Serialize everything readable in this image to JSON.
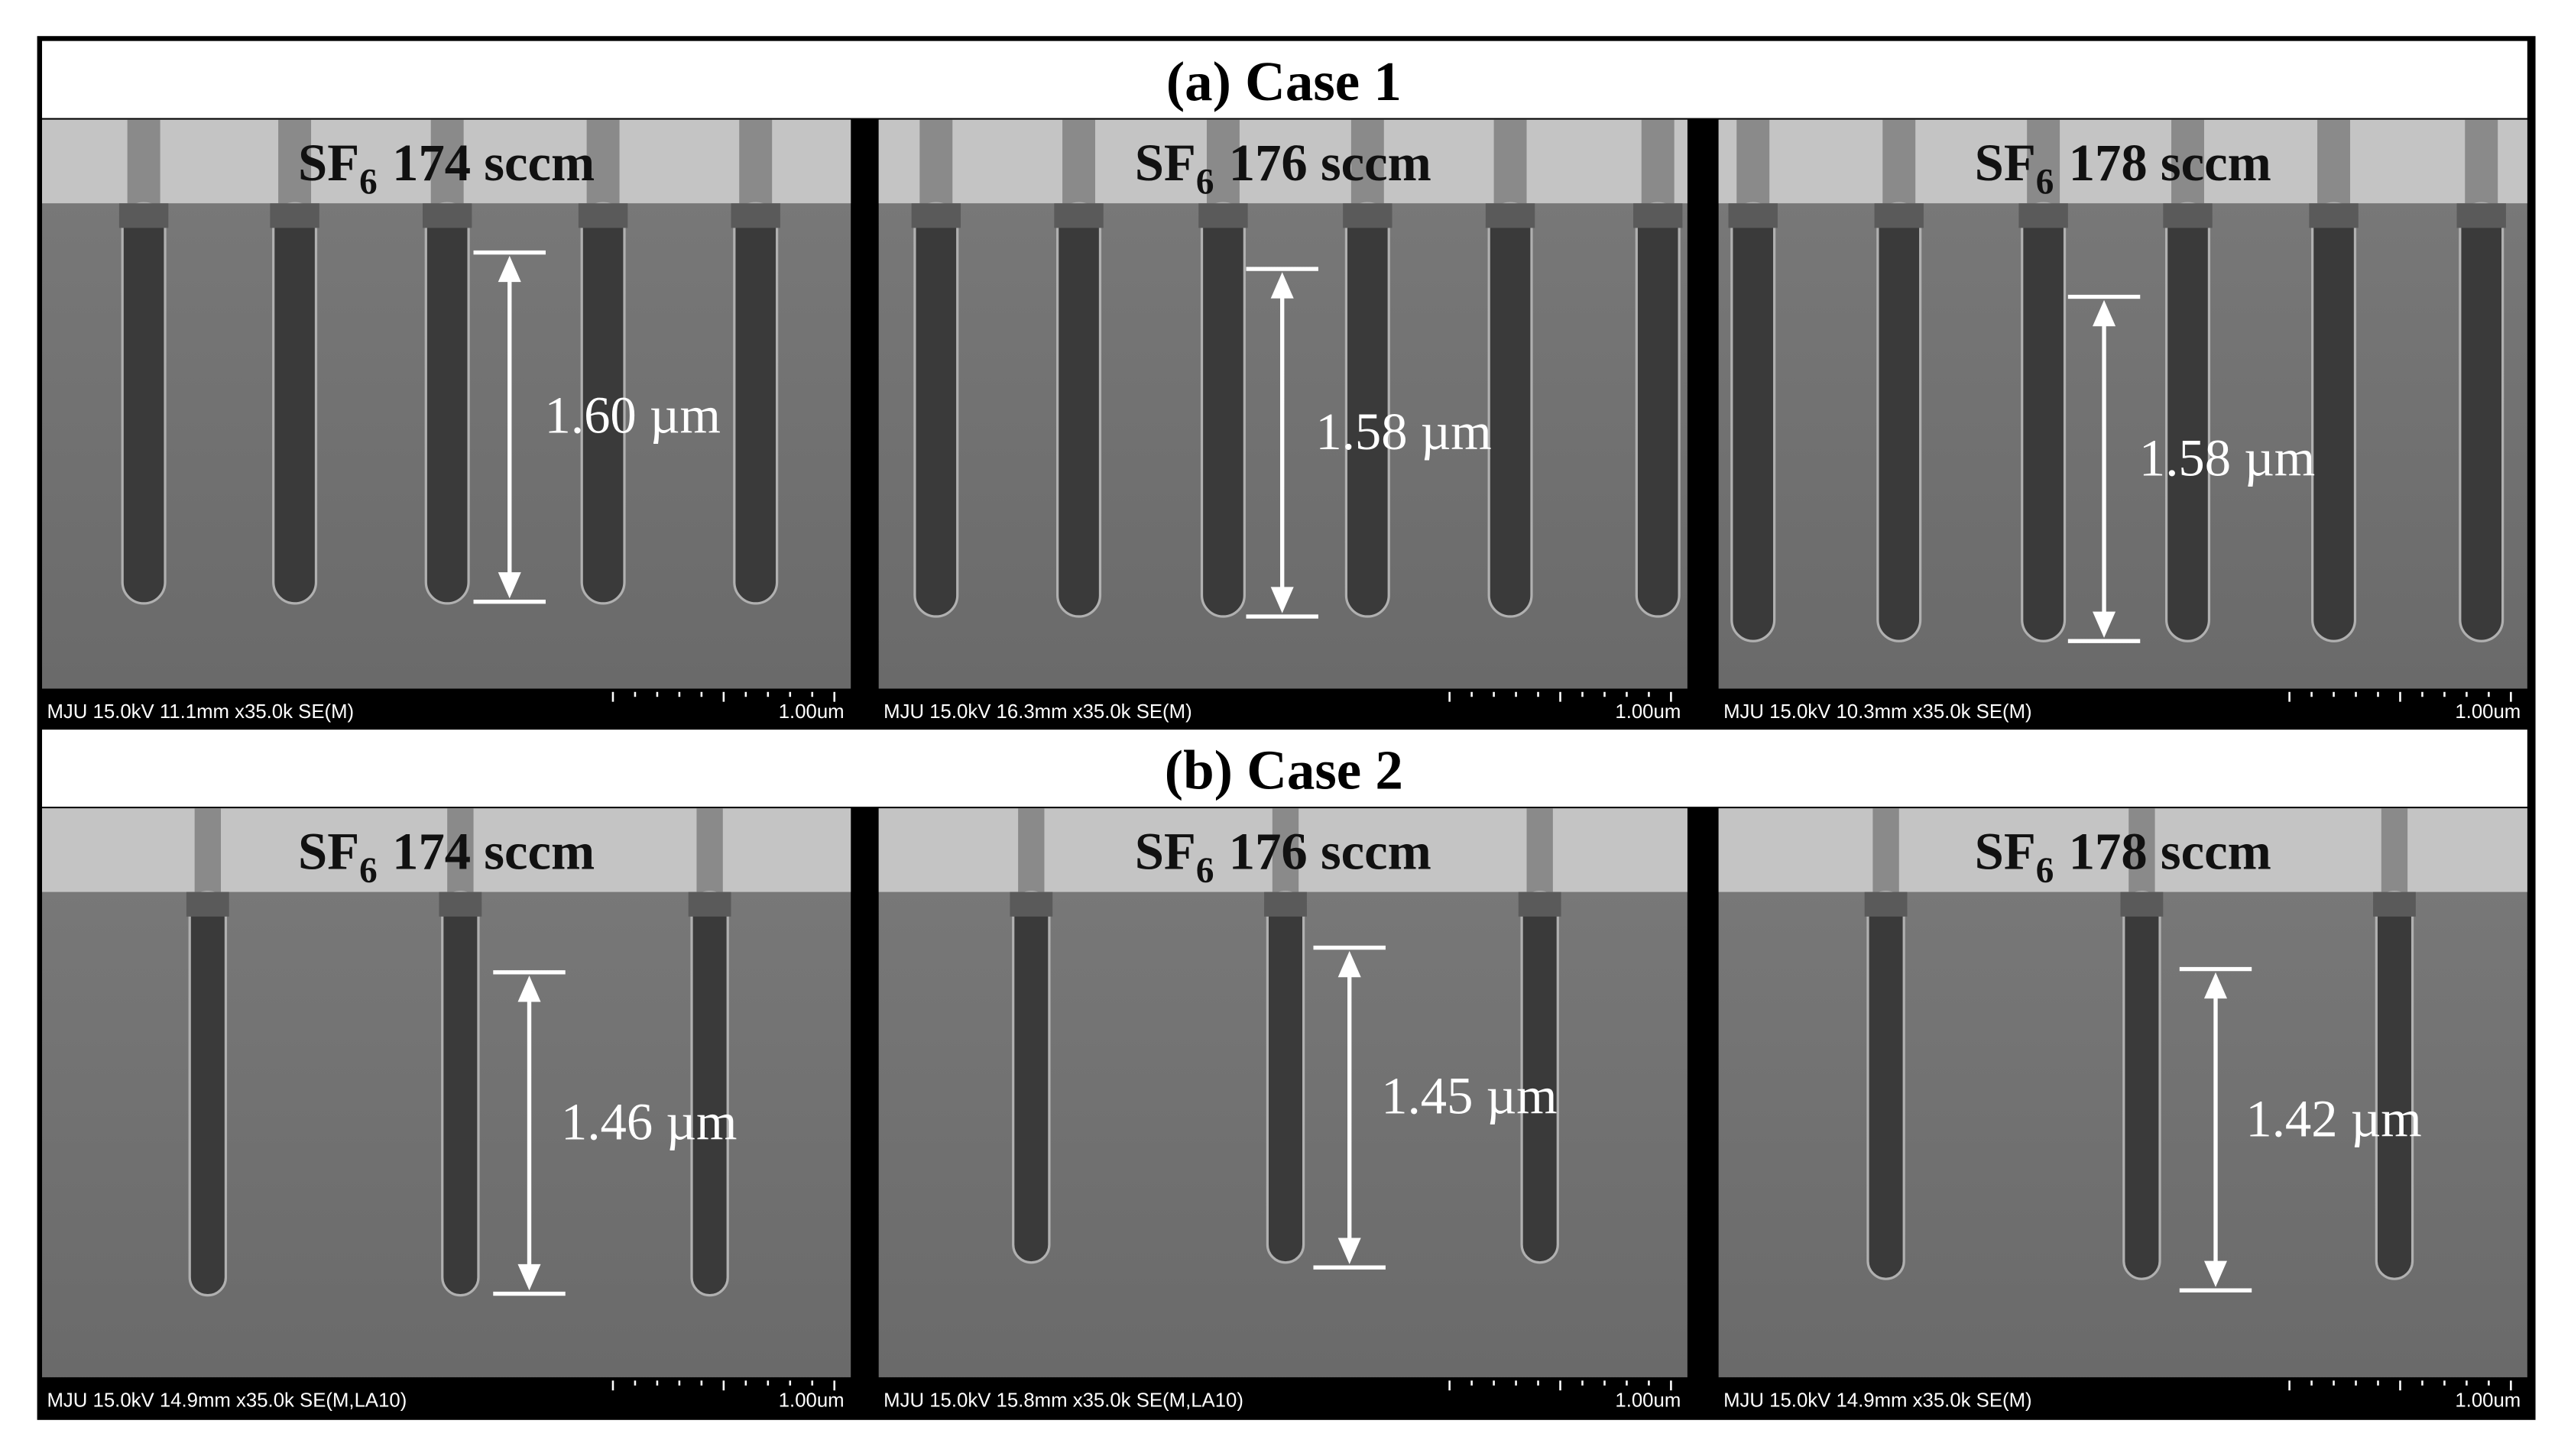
{
  "sections": [
    {
      "title": "(a) Case 1",
      "panels": [
        {
          "gas": "SF",
          "gas_sub": "6",
          "flow": "174 sccm",
          "depth": "1.60 µm",
          "info": "MJU 15.0kV 11.1mm x35.0k SE(M)",
          "scale": "1.00um"
        },
        {
          "gas": "SF",
          "gas_sub": "6",
          "flow": "176 sccm",
          "depth": "1.58 µm",
          "info": "MJU 15.0kV 16.3mm x35.0k SE(M)",
          "scale": "1.00um"
        },
        {
          "gas": "SF",
          "gas_sub": "6",
          "flow": "178 sccm",
          "depth": "1.58 µm",
          "info": "MJU 15.0kV 10.3mm x35.0k SE(M)",
          "scale": "1.00um"
        }
      ]
    },
    {
      "title": "(b) Case 2",
      "panels": [
        {
          "gas": "SF",
          "gas_sub": "6",
          "flow": "174 sccm",
          "depth": "1.46 µm",
          "info": "MJU 15.0kV 14.9mm x35.0k SE(M,LA10)",
          "scale": "1.00um"
        },
        {
          "gas": "SF",
          "gas_sub": "6",
          "flow": "176 sccm",
          "depth": "1.45 µm",
          "info": "MJU 15.0kV 15.8mm x35.0k SE(M,LA10)",
          "scale": "1.00um"
        },
        {
          "gas": "SF",
          "gas_sub": "6",
          "flow": "178 sccm",
          "depth": "1.42 µm",
          "info": "MJU 15.0kV 14.9mm x35.0k SE(M)",
          "scale": "1.00um"
        }
      ]
    }
  ]
}
